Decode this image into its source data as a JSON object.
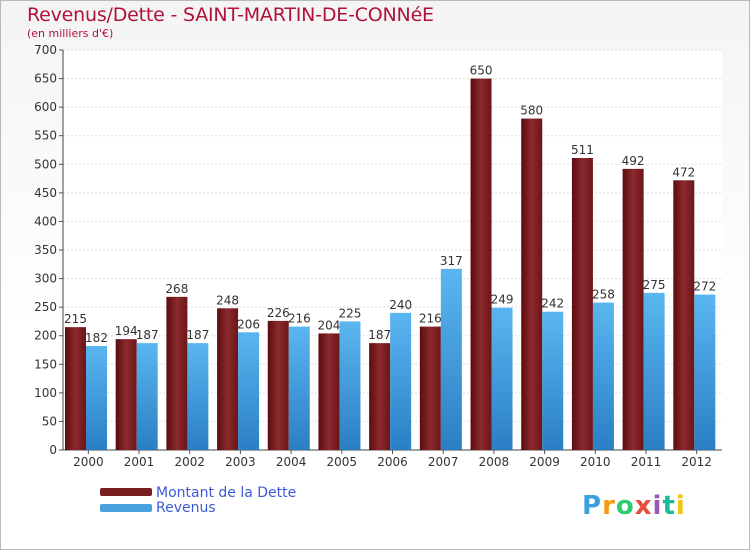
{
  "header": {
    "title": "Revenus/Dette - SAINT-MARTIN-DE-CONNéE",
    "subtitle": "(en milliers d'€)"
  },
  "legend": {
    "items": [
      {
        "label": "Montant de la Dette",
        "color": "#7a1e22"
      },
      {
        "label": "Revenus",
        "color": "#4aa3e0"
      }
    ]
  },
  "logo": {
    "text": "Proxiti"
  },
  "chart_data": {
    "type": "bar",
    "categories": [
      "2000",
      "2001",
      "2002",
      "2003",
      "2004",
      "2005",
      "2006",
      "2007",
      "2008",
      "2009",
      "2010",
      "2011",
      "2012"
    ],
    "series": [
      {
        "name": "Montant de la Dette",
        "color": "#7a1e22",
        "values": [
          215,
          194,
          268,
          248,
          226,
          204,
          187,
          216,
          650,
          580,
          511,
          492,
          472
        ]
      },
      {
        "name": "Revenus",
        "color": "#4aa3e0",
        "values": [
          182,
          187,
          187,
          206,
          216,
          225,
          240,
          317,
          249,
          242,
          258,
          275,
          272
        ]
      }
    ],
    "yticks": [
      0,
      50,
      100,
      150,
      200,
      250,
      300,
      350,
      400,
      450,
      500,
      550,
      600,
      650,
      700
    ],
    "ylim": [
      0,
      700
    ],
    "grid": true,
    "legend_position": "bottom-left"
  }
}
